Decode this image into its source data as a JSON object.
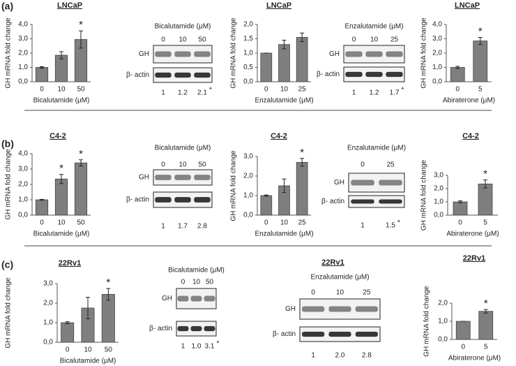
{
  "panels": [
    "(a)",
    "(b)",
    "(c)"
  ],
  "chart_data": [
    {
      "type": "bar",
      "title": "LNCaP",
      "y_label": "GH mRNA fold change",
      "x_label": "Bicalutamide (μM)",
      "color": "#7f7f7f",
      "categories": [
        "0",
        "10",
        "50"
      ],
      "values": [
        1.0,
        1.85,
        2.95
      ],
      "errors": [
        0.05,
        0.25,
        0.6
      ],
      "significance": [
        null,
        null,
        "*"
      ],
      "ylim": [
        0,
        4
      ],
      "yticks": [
        {
          "value": 0,
          "label": "0,0"
        },
        {
          "value": 1,
          "label": "1,0"
        },
        {
          "value": 2,
          "label": "2,0"
        },
        {
          "value": 3,
          "label": "3,0"
        },
        {
          "value": 4,
          "label": "4,0"
        }
      ]
    },
    {
      "type": "bar",
      "title": "LNCaP",
      "y_label": "GH mRNA fold change",
      "x_label": "Enzalutamide (μM)",
      "color": "#7f7f7f",
      "categories": [
        "0",
        "10",
        "25"
      ],
      "values": [
        1.0,
        1.3,
        1.55
      ],
      "errors": [
        0.0,
        0.15,
        0.15
      ],
      "significance": [
        null,
        null,
        null
      ],
      "ylim": [
        0,
        2
      ],
      "yticks": [
        {
          "value": 0,
          "label": "0,0"
        },
        {
          "value": 0.5,
          "label": "0,5"
        },
        {
          "value": 1,
          "label": "1,0"
        },
        {
          "value": 1.5,
          "label": "1,5"
        },
        {
          "value": 2,
          "label": "2,0"
        }
      ]
    },
    {
      "type": "bar",
      "title": "LNCaP",
      "y_label": "GH mRNA fold change",
      "x_label": "Abiraterone (μM)",
      "color": "#7f7f7f",
      "categories": [
        "0",
        "5"
      ],
      "values": [
        1.0,
        2.85
      ],
      "errors": [
        0.08,
        0.25
      ],
      "significance": [
        null,
        "*"
      ],
      "ylim": [
        0,
        4
      ],
      "yticks": [
        {
          "value": 0,
          "label": "0,0"
        },
        {
          "value": 1,
          "label": "1,0"
        },
        {
          "value": 2,
          "label": "2,0"
        },
        {
          "value": 3,
          "label": "3,0"
        },
        {
          "value": 4,
          "label": "4,0"
        }
      ]
    },
    {
      "type": "bar",
      "title": "C4-2",
      "y_label": "GH mRNA fold change",
      "x_label": "Bicalutamide (μM)",
      "color": "#7f7f7f",
      "categories": [
        "0",
        "10",
        "50"
      ],
      "values": [
        1.0,
        2.35,
        3.4
      ],
      "errors": [
        0.03,
        0.3,
        0.2
      ],
      "significance": [
        null,
        "*",
        "*"
      ],
      "ylim": [
        0,
        4
      ],
      "yticks": [
        {
          "value": 0,
          "label": "0,0"
        },
        {
          "value": 1,
          "label": "1,0"
        },
        {
          "value": 2,
          "label": "2,0"
        },
        {
          "value": 3,
          "label": "3,0"
        },
        {
          "value": 4,
          "label": "4,0"
        }
      ]
    },
    {
      "type": "bar",
      "title": "C4-2",
      "y_label": "GH mRNA fold change",
      "x_label": "Enzalutamide (μM)",
      "color": "#7f7f7f",
      "categories": [
        "0",
        "10",
        "25"
      ],
      "values": [
        1.0,
        1.5,
        2.7
      ],
      "errors": [
        0.03,
        0.35,
        0.2
      ],
      "significance": [
        null,
        null,
        "*"
      ],
      "ylim": [
        0,
        3
      ],
      "yticks": [
        {
          "value": 0,
          "label": "0,0"
        },
        {
          "value": 1,
          "label": "1,0"
        },
        {
          "value": 2,
          "label": "2,0"
        },
        {
          "value": 3,
          "label": "3,0"
        }
      ]
    },
    {
      "type": "bar",
      "title": "C4-2",
      "y_label": "GH mRNA fold change",
      "x_label": "Abiraterone (μM)",
      "color": "#7f7f7f",
      "categories": [
        "0",
        "5"
      ],
      "values": [
        1.0,
        2.35
      ],
      "errors": [
        0.08,
        0.3
      ],
      "significance": [
        null,
        "*"
      ],
      "ylim": [
        0,
        3
      ],
      "yticks": [
        {
          "value": 0,
          "label": "0,0"
        },
        {
          "value": 1,
          "label": "1,0"
        },
        {
          "value": 2,
          "label": "2,0"
        },
        {
          "value": 3,
          "label": "3,0"
        }
      ]
    },
    {
      "type": "bar",
      "title": "22Rv1",
      "y_label": "GH mRNA fold change",
      "x_label": "Bicalutamide (μM)",
      "color": "#7f7f7f",
      "categories": [
        "0",
        "10",
        "50"
      ],
      "values": [
        1.0,
        1.75,
        2.45
      ],
      "errors": [
        0.05,
        0.55,
        0.3
      ],
      "significance": [
        null,
        null,
        "*"
      ],
      "ylim": [
        0,
        3
      ],
      "yticks": [
        {
          "value": 0,
          "label": "0,0"
        },
        {
          "value": 1,
          "label": "1,0"
        },
        {
          "value": 2,
          "label": "2,0"
        },
        {
          "value": 3,
          "label": "3,0"
        }
      ]
    },
    {
      "type": "bar",
      "title": "22Rv1",
      "y_label": "GH mRNA fold change",
      "x_label": "Abiraterone (μM)",
      "color": "#7f7f7f",
      "categories": [
        "0",
        "5"
      ],
      "values": [
        1.0,
        1.55
      ],
      "errors": [
        0.0,
        0.1
      ],
      "significance": [
        null,
        "*"
      ],
      "ylim": [
        0,
        2
      ],
      "yticks": [
        {
          "value": 0,
          "label": "0,0"
        },
        {
          "value": 1,
          "label": "1,0"
        },
        {
          "value": 2,
          "label": "2,0"
        }
      ]
    }
  ],
  "blots": [
    {
      "header": "Bicalutamide (μM)",
      "lanes": [
        "0",
        "10",
        "50"
      ],
      "rows": [
        "GH",
        "β- actin"
      ],
      "quantities": [
        "1",
        "1.2",
        "2.1"
      ],
      "significance": "*"
    },
    {
      "header": "Enzalutamide (μM)",
      "lanes": [
        "0",
        "10",
        "25"
      ],
      "rows": [
        "GH",
        "β- actin"
      ],
      "quantities": [
        "1",
        "1.2",
        "1.7"
      ],
      "significance": "*"
    },
    {
      "header": "Bicalutamide (μM)",
      "lanes": [
        "0",
        "10",
        "50"
      ],
      "rows": [
        "GH",
        "β- actin"
      ],
      "quantities": [
        "1",
        "1.7",
        "2.8"
      ]
    },
    {
      "header": "Enzalutamide (μM)",
      "lanes": [
        "0",
        "25"
      ],
      "rows": [
        "GH",
        "β- actin"
      ],
      "quantities": [
        "1",
        "1.5"
      ],
      "significance": "*"
    },
    {
      "header": "Bicalutamide (μM)",
      "lanes": [
        "0",
        "10",
        "50"
      ],
      "rows": [
        "GH",
        "β- actin"
      ],
      "quantities": [
        "1",
        "1.0",
        "3.1"
      ],
      "significance": "*"
    },
    {
      "title": "22Rv1",
      "header": "Enzalutamide (μM)",
      "lanes": [
        "0",
        "10",
        "25"
      ],
      "rows": [
        "GH",
        "β- actin"
      ],
      "quantities": [
        "1",
        "2.0",
        "2.8"
      ]
    }
  ]
}
